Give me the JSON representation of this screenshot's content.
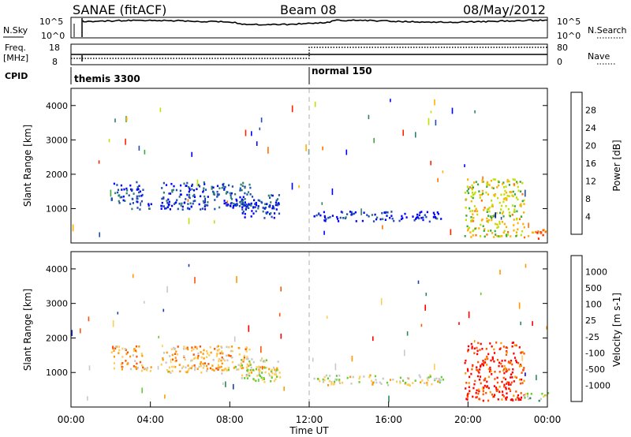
{
  "header": {
    "station": "SANAE (fitACF)",
    "beam": "Beam 08",
    "date": "08/May/2012"
  },
  "param_panels": {
    "nsky_label": "N.Sky",
    "nsky_ticks": [
      "10^5",
      "10^0"
    ],
    "nsearch_label": "N.Search",
    "nsearch_ticks": [
      "10^5",
      "10^0"
    ],
    "freq_label_1": "Freq.",
    "freq_label_2": "[MHz]",
    "freq_ticks": [
      "18",
      "8"
    ],
    "nave_label": "Nave",
    "nave_ticks": [
      "80",
      "0"
    ],
    "cpid_label": "CPID",
    "cpid_segments": [
      {
        "label": "themis 3300",
        "start_hour": 0
      },
      {
        "label": "normal 150",
        "start_hour": 12
      }
    ]
  },
  "chart_data": [
    {
      "type": "heatmap",
      "name": "power",
      "xlabel": "",
      "ylabel": "Slant Range [km]",
      "xlim": [
        0,
        24
      ],
      "ylim": [
        0,
        4500
      ],
      "yticks": [
        1000,
        2000,
        3000,
        4000
      ],
      "colorbar": {
        "label": "Power [dB]",
        "ticks": [
          "4",
          "8",
          "12",
          "16",
          "20",
          "24",
          "28"
        ],
        "range": [
          0,
          30
        ],
        "colors": [
          "#0000ff",
          "#1f4fb4",
          "#2f7f6f",
          "#3aa83a",
          "#bfe000",
          "#ffb000",
          "#ff7000",
          "#ff2000"
        ]
      },
      "features": [
        {
          "t0": 2.0,
          "t1": 3.6,
          "r0": 1100,
          "r1": 1800,
          "level": 0.15
        },
        {
          "t0": 3.0,
          "t1": 10.5,
          "r0": 1000,
          "r1": 1200,
          "level": 0.1
        },
        {
          "t0": 4.5,
          "t1": 9.0,
          "r0": 1100,
          "r1": 1800,
          "level": 0.2
        },
        {
          "t0": 8.5,
          "t1": 10.5,
          "r0": 750,
          "r1": 1450,
          "level": 0.15
        },
        {
          "t0": 12.2,
          "t1": 18.8,
          "r0": 650,
          "r1": 950,
          "level": 0.1
        },
        {
          "t0": 19.8,
          "t1": 22.8,
          "r0": 200,
          "r1": 1900,
          "level": 0.6
        },
        {
          "t0": 22.8,
          "t1": 24.0,
          "r0": 150,
          "r1": 450,
          "level": 0.85
        }
      ]
    },
    {
      "type": "heatmap",
      "name": "velocity",
      "xlabel": "Time UT",
      "ylabel": "Slant Range [km]",
      "xlim": [
        0,
        24
      ],
      "ylim": [
        0,
        4500
      ],
      "yticks": [
        1000,
        2000,
        3000,
        4000
      ],
      "xticks": [
        "00:00",
        "04:00",
        "08:00",
        "12:00",
        "16:00",
        "20:00",
        "00:00"
      ],
      "colorbar": {
        "label": "Velocity [m s-1]",
        "ticks": [
          "1000",
          "500",
          "100",
          "25",
          "-25",
          "-100",
          "-500",
          "-1000"
        ],
        "range": [
          -1200,
          1200
        ],
        "colors": [
          "#ff0000",
          "#ff5500",
          "#ff9900",
          "#ffcc55",
          "#c8c8c8",
          "#66cc33",
          "#2a8a55",
          "#1a3fa8",
          "#0000ff"
        ]
      },
      "features": [
        {
          "t0": 2.0,
          "t1": 3.6,
          "r0": 1100,
          "r1": 1800,
          "level": 0.3
        },
        {
          "t0": 3.0,
          "t1": 10.5,
          "r0": 1000,
          "r1": 1200,
          "level": 0.4
        },
        {
          "t0": 4.5,
          "t1": 9.0,
          "r0": 1100,
          "r1": 1800,
          "level": 0.35
        },
        {
          "t0": 8.5,
          "t1": 10.5,
          "r0": 750,
          "r1": 1450,
          "level": 0.5
        },
        {
          "t0": 12.2,
          "t1": 18.8,
          "r0": 650,
          "r1": 950,
          "level": 0.45
        },
        {
          "t0": 19.8,
          "t1": 22.8,
          "r0": 200,
          "r1": 1900,
          "level": 0.08
        },
        {
          "t0": 22.8,
          "t1": 24.0,
          "r0": 150,
          "r1": 450,
          "level": 0.55
        }
      ]
    }
  ]
}
